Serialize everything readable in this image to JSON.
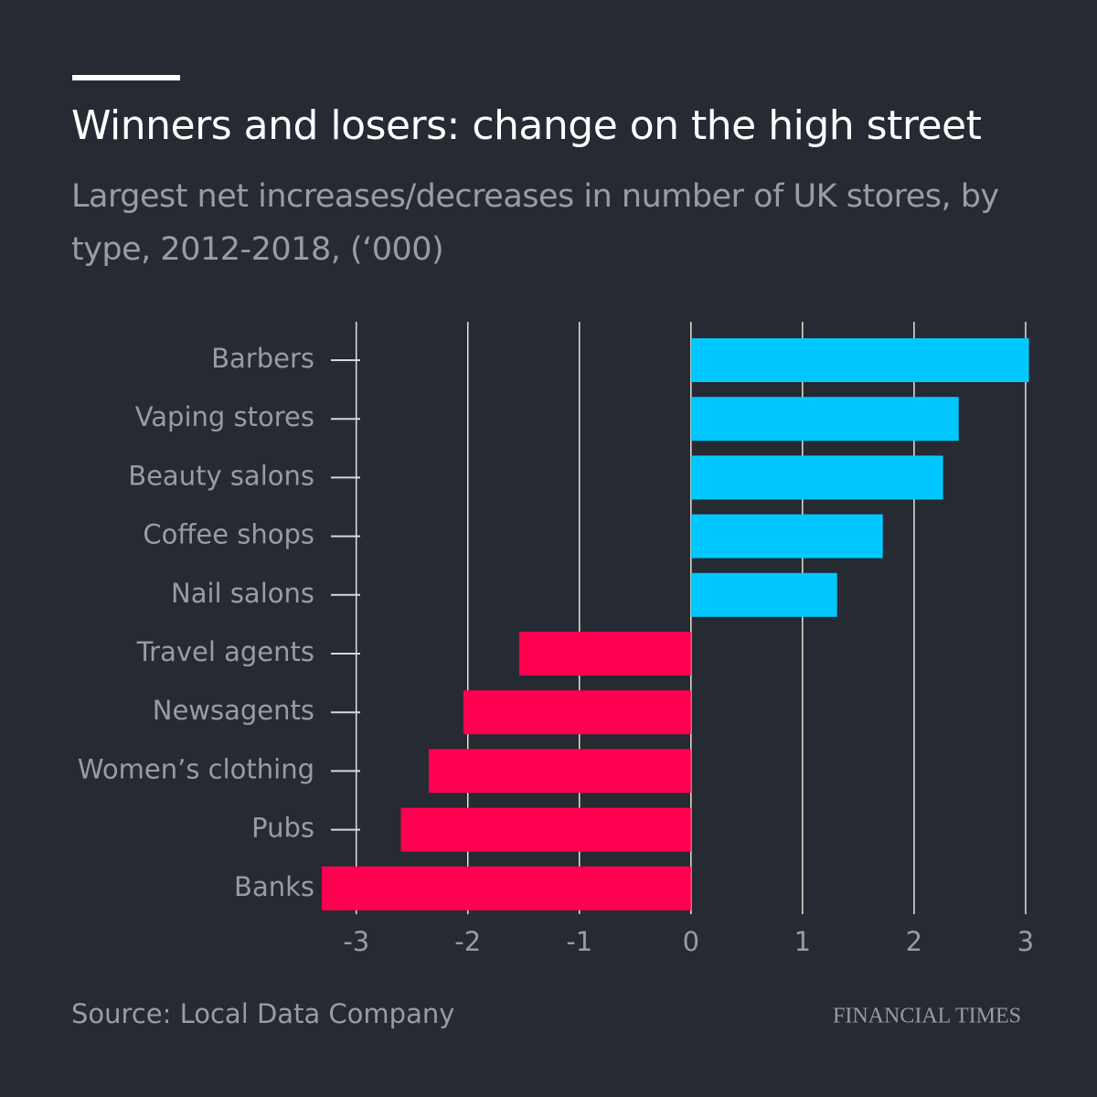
{
  "chart_data": {
    "type": "hbar",
    "title": "Winners and losers: change on the high street",
    "subtitle": "Largest net increases/decreases in number of UK stores, by type, 2012-2018, (‘000)",
    "categories": [
      "Barbers",
      "Vaping stores",
      "Beauty salons",
      "Coffee shops",
      "Nail salons",
      "Travel agents",
      "Newsagents",
      "Women’s clothing",
      "Pubs",
      "Banks"
    ],
    "values": [
      3.03,
      2.4,
      2.26,
      1.72,
      1.31,
      -1.54,
      -2.04,
      -2.35,
      -2.6,
      -3.31
    ],
    "colors": [
      "#00c8ff",
      "#00c8ff",
      "#00c8ff",
      "#00c8ff",
      "#00c8ff",
      "#ff0050",
      "#ff0050",
      "#ff0050",
      "#ff0050",
      "#ff0050"
    ],
    "xlim": [
      -3.35,
      3.05
    ],
    "xticks": [
      -3,
      -2,
      -1,
      0,
      1,
      2,
      3
    ],
    "grid": true,
    "source": "Source: Local Data Company",
    "publisher": "FINANCIAL TIMES"
  }
}
